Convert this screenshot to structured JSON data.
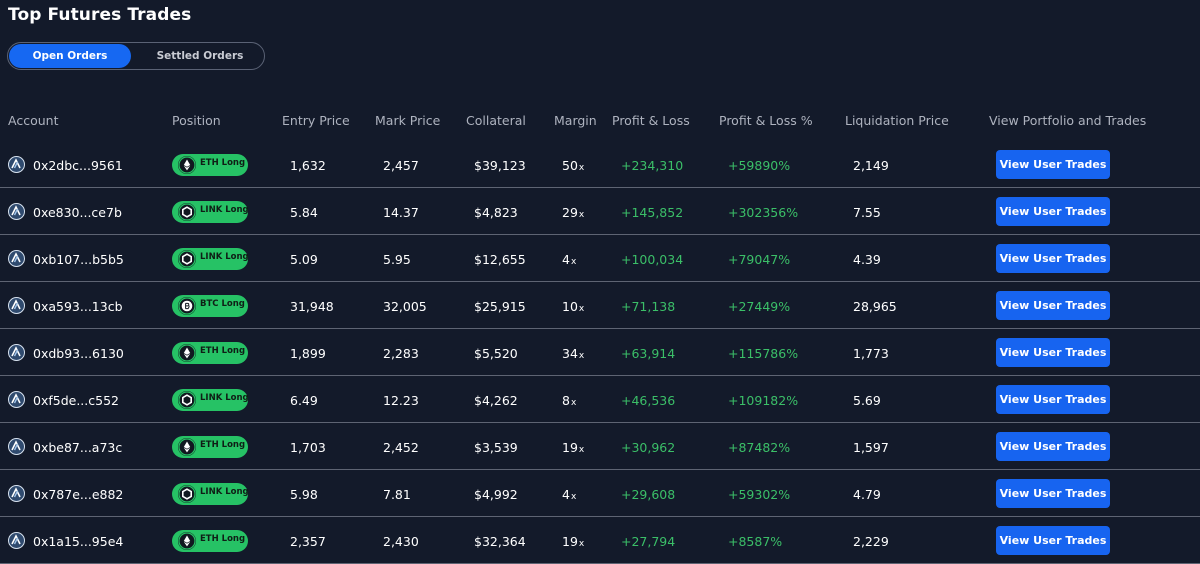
{
  "page": {
    "title": "Top Futures Trades"
  },
  "tabs": [
    {
      "label": "Open Orders",
      "active": true
    },
    {
      "label": "Settled Orders",
      "active": false
    }
  ],
  "columns": {
    "account": "Account",
    "position": "Position",
    "entry_price": "Entry Price",
    "mark_price": "Mark Price",
    "collateral": "Collateral",
    "margin": "Margin",
    "pnl": "Profit & Loss",
    "pnl_pct": "Profit & Loss %",
    "liquidation_price": "Liquidation Price",
    "view": "View Portfolio and Trades"
  },
  "margin_suffix": "x",
  "colors": {
    "background": "#131a2a",
    "accent_blue": "#1668f2",
    "positive_green": "#3bbf68",
    "badge_green": "#26c265"
  },
  "icons": {
    "account": "account-avatar-icon",
    "eth": "eth-icon",
    "link": "link-icon",
    "btc": "btc-icon"
  },
  "rows": [
    {
      "account": "0x2dbc...9561",
      "asset": "eth",
      "position": "ETH Long",
      "entry_price": "1,632",
      "mark_price": "2,457",
      "collateral": "$39,123",
      "margin": "50",
      "pnl": "+234,310",
      "pnl_pct": "+59890%",
      "liquidation_price": "2,149",
      "button": "View User Trades"
    },
    {
      "account": "0xe830...ce7b",
      "asset": "link",
      "position": "LINK Long",
      "entry_price": "5.84",
      "mark_price": "14.37",
      "collateral": "$4,823",
      "margin": "29",
      "pnl": "+145,852",
      "pnl_pct": "+302356%",
      "liquidation_price": "7.55",
      "button": "View User Trades"
    },
    {
      "account": "0xb107...b5b5",
      "asset": "link",
      "position": "LINK Long",
      "entry_price": "5.09",
      "mark_price": "5.95",
      "collateral": "$12,655",
      "margin": "4",
      "pnl": "+100,034",
      "pnl_pct": "+79047%",
      "liquidation_price": "4.39",
      "button": "View User Trades"
    },
    {
      "account": "0xa593...13cb",
      "asset": "btc",
      "position": "BTC Long",
      "entry_price": "31,948",
      "mark_price": "32,005",
      "collateral": "$25,915",
      "margin": "10",
      "pnl": "+71,138",
      "pnl_pct": "+27449%",
      "liquidation_price": "28,965",
      "button": "View User Trades"
    },
    {
      "account": "0xdb93...6130",
      "asset": "eth",
      "position": "ETH Long",
      "entry_price": "1,899",
      "mark_price": "2,283",
      "collateral": "$5,520",
      "margin": "34",
      "pnl": "+63,914",
      "pnl_pct": "+115786%",
      "liquidation_price": "1,773",
      "button": "View User Trades"
    },
    {
      "account": "0xf5de...c552",
      "asset": "link",
      "position": "LINK Long",
      "entry_price": "6.49",
      "mark_price": "12.23",
      "collateral": "$4,262",
      "margin": "8",
      "pnl": "+46,536",
      "pnl_pct": "+109182%",
      "liquidation_price": "5.69",
      "button": "View User Trades"
    },
    {
      "account": "0xbe87...a73c",
      "asset": "eth",
      "position": "ETH Long",
      "entry_price": "1,703",
      "mark_price": "2,452",
      "collateral": "$3,539",
      "margin": "19",
      "pnl": "+30,962",
      "pnl_pct": "+87482%",
      "liquidation_price": "1,597",
      "button": "View User Trades"
    },
    {
      "account": "0x787e...e882",
      "asset": "link",
      "position": "LINK Long",
      "entry_price": "5.98",
      "mark_price": "7.81",
      "collateral": "$4,992",
      "margin": "4",
      "pnl": "+29,608",
      "pnl_pct": "+59302%",
      "liquidation_price": "4.79",
      "button": "View User Trades"
    },
    {
      "account": "0x1a15...95e4",
      "asset": "eth",
      "position": "ETH Long",
      "entry_price": "2,357",
      "mark_price": "2,430",
      "collateral": "$32,364",
      "margin": "19",
      "pnl": "+27,794",
      "pnl_pct": "+8587%",
      "liquidation_price": "2,229",
      "button": "View User Trades"
    }
  ]
}
